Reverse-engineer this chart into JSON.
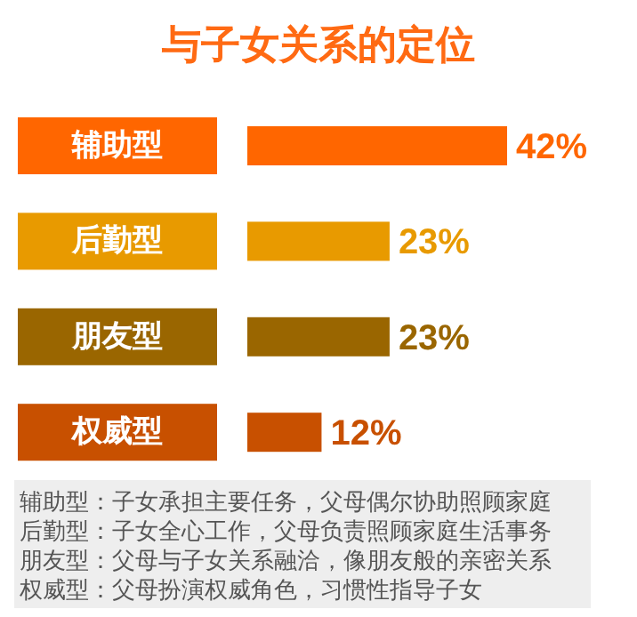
{
  "chart_data": {
    "type": "bar",
    "orientation": "horizontal",
    "title": "与子女关系的定位",
    "categories": [
      "辅助型",
      "后勤型",
      "朋友型",
      "权威型"
    ],
    "values": [
      42,
      23,
      23,
      12
    ],
    "colors": [
      "#ff6600",
      "#e89a00",
      "#9a6600",
      "#c85000"
    ],
    "data_labels": true,
    "value_labels": [
      "42%",
      "23%",
      "23%",
      "12%"
    ],
    "annotations": [
      "辅助型：子女承担主要任务，父母偶尔协助照顾家庭",
      "后勤型：子女全心工作，父母负责照顾家庭生活事务",
      "朋友型：父母与子女关系融洽，像朋友般的亲密关系",
      "权威型：父母扮演权威角色，习惯性指导子女"
    ]
  }
}
